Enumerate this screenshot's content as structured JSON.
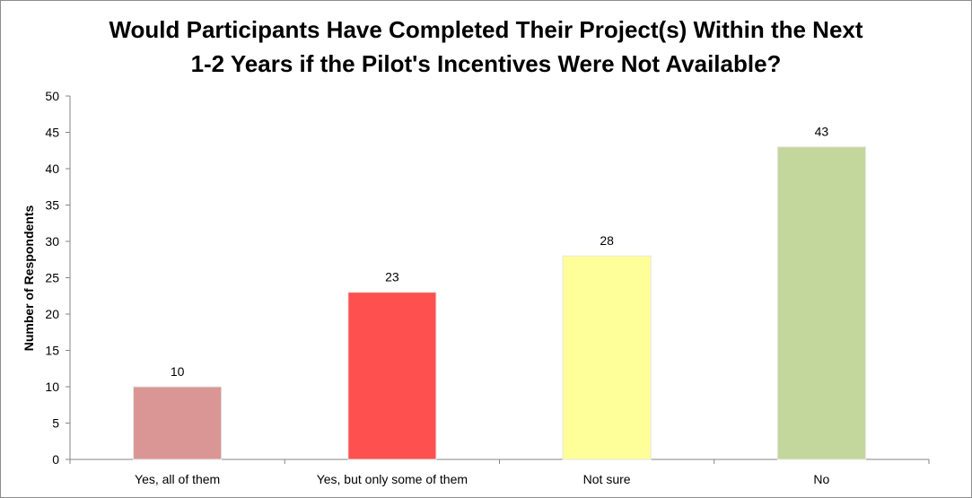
{
  "chart_data": {
    "type": "bar",
    "title_lines": [
      "Would Participants Have Completed Their Project(s) Within the Next",
      "1-2 Years if the Pilot's Incentives Were Not Available?"
    ],
    "xlabel": "",
    "ylabel": "Number of Respondents",
    "ylim": [
      0,
      50
    ],
    "yticks": [
      "0",
      "5",
      "10",
      "15",
      "20",
      "25",
      "30",
      "35",
      "40",
      "45",
      "50"
    ],
    "grid": false,
    "legend": "none",
    "categories": [
      "Yes, all of them",
      "Yes, but only some of them",
      "Not sure",
      "No"
    ],
    "values": [
      10,
      23,
      28,
      43
    ],
    "colors": [
      "#d99694",
      "#ff5050",
      "#ffff99",
      "#c3d69b"
    ]
  }
}
